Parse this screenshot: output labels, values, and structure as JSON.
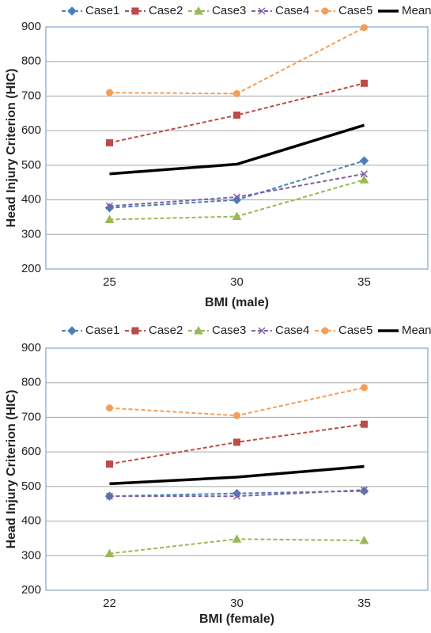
{
  "chart_data": [
    {
      "type": "line",
      "x_label": "BMI (male)",
      "y_label": "Head Injury Criterion (HIC)",
      "categories": [
        "25",
        "30",
        "35"
      ],
      "ylim": [
        200,
        900
      ],
      "yticks": [
        200,
        300,
        400,
        500,
        600,
        700,
        800,
        900
      ],
      "grid": true,
      "series": [
        {
          "name": "Case1",
          "color": "#4a7ebb",
          "marker": "diamond",
          "dashed": true,
          "values": [
            377,
            400,
            513
          ]
        },
        {
          "name": "Case2",
          "color": "#be4b48",
          "marker": "square",
          "dashed": true,
          "values": [
            565,
            645,
            737
          ]
        },
        {
          "name": "Case3",
          "color": "#98b954",
          "marker": "triangle",
          "dashed": true,
          "values": [
            343,
            352,
            458
          ]
        },
        {
          "name": "Case4",
          "color": "#7d60a0",
          "marker": "x",
          "dashed": true,
          "values": [
            382,
            408,
            475
          ]
        },
        {
          "name": "Case5",
          "color": "#f59d56",
          "marker": "circle",
          "dashed": true,
          "values": [
            710,
            707,
            898
          ]
        },
        {
          "name": "Mean",
          "color": "#000000",
          "marker": "none",
          "dashed": false,
          "values": [
            475,
            503,
            616
          ]
        }
      ]
    },
    {
      "type": "line",
      "x_label": "BMI (female)",
      "y_label": "Head Injury Criterion (HIC)",
      "categories": [
        "22",
        "30",
        "35"
      ],
      "ylim": [
        200,
        900
      ],
      "yticks": [
        200,
        300,
        400,
        500,
        600,
        700,
        800,
        900
      ],
      "grid": true,
      "series": [
        {
          "name": "Case1",
          "color": "#4a7ebb",
          "marker": "diamond",
          "dashed": true,
          "values": [
            472,
            480,
            487
          ]
        },
        {
          "name": "Case2",
          "color": "#be4b48",
          "marker": "square",
          "dashed": true,
          "values": [
            565,
            628,
            680
          ]
        },
        {
          "name": "Case3",
          "color": "#98b954",
          "marker": "triangle",
          "dashed": true,
          "values": [
            306,
            348,
            344
          ]
        },
        {
          "name": "Case4",
          "color": "#7d60a0",
          "marker": "x",
          "dashed": true,
          "values": [
            472,
            472,
            490
          ]
        },
        {
          "name": "Case5",
          "color": "#f59d56",
          "marker": "circle",
          "dashed": true,
          "values": [
            727,
            705,
            786
          ]
        },
        {
          "name": "Mean",
          "color": "#000000",
          "marker": "none",
          "dashed": false,
          "values": [
            508,
            527,
            558
          ]
        }
      ]
    }
  ]
}
